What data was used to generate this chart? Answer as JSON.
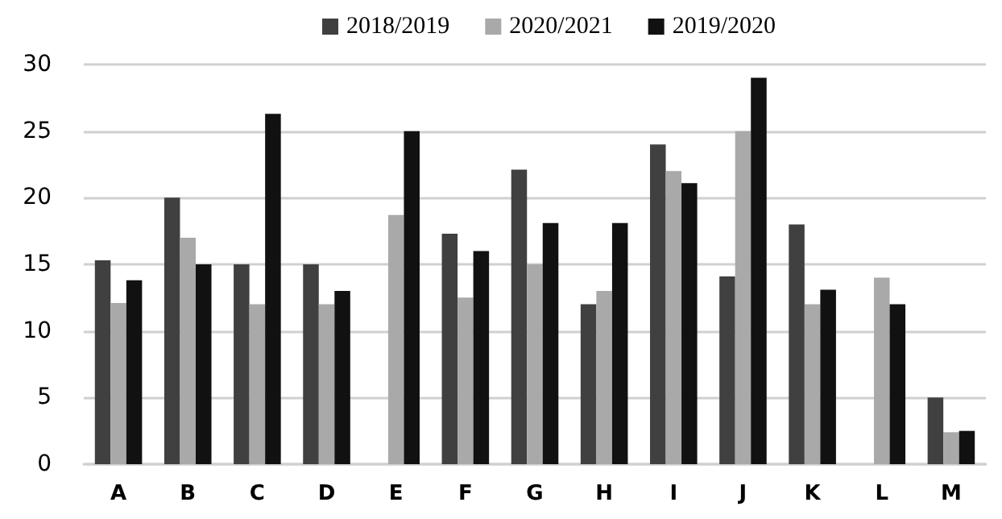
{
  "chart_data": {
    "type": "bar",
    "categories": [
      "A",
      "B",
      "C",
      "D",
      "E",
      "F",
      "G",
      "H",
      "I",
      "J",
      "K",
      "L",
      "M"
    ],
    "series": [
      {
        "name": "2018/2019",
        "color": "#404040",
        "values": [
          15.3,
          20,
          15,
          15,
          null,
          17.3,
          22.1,
          12,
          24,
          14.1,
          18,
          null,
          5
        ]
      },
      {
        "name": "2020/2021",
        "color": "#a9a9a9",
        "values": [
          12.1,
          17,
          12,
          12,
          18.7,
          12.5,
          15,
          13,
          22,
          25,
          12,
          14,
          2.4
        ]
      },
      {
        "name": "2019/2020",
        "color": "#111111",
        "values": [
          13.8,
          15,
          26.3,
          13,
          25,
          16,
          18.1,
          18.1,
          21.1,
          29,
          13.1,
          12,
          2.5
        ]
      }
    ],
    "ylim": [
      0,
      30
    ],
    "yticks": [
      0,
      5,
      10,
      15,
      20,
      25,
      30
    ],
    "grid": "y",
    "legend": "top"
  }
}
